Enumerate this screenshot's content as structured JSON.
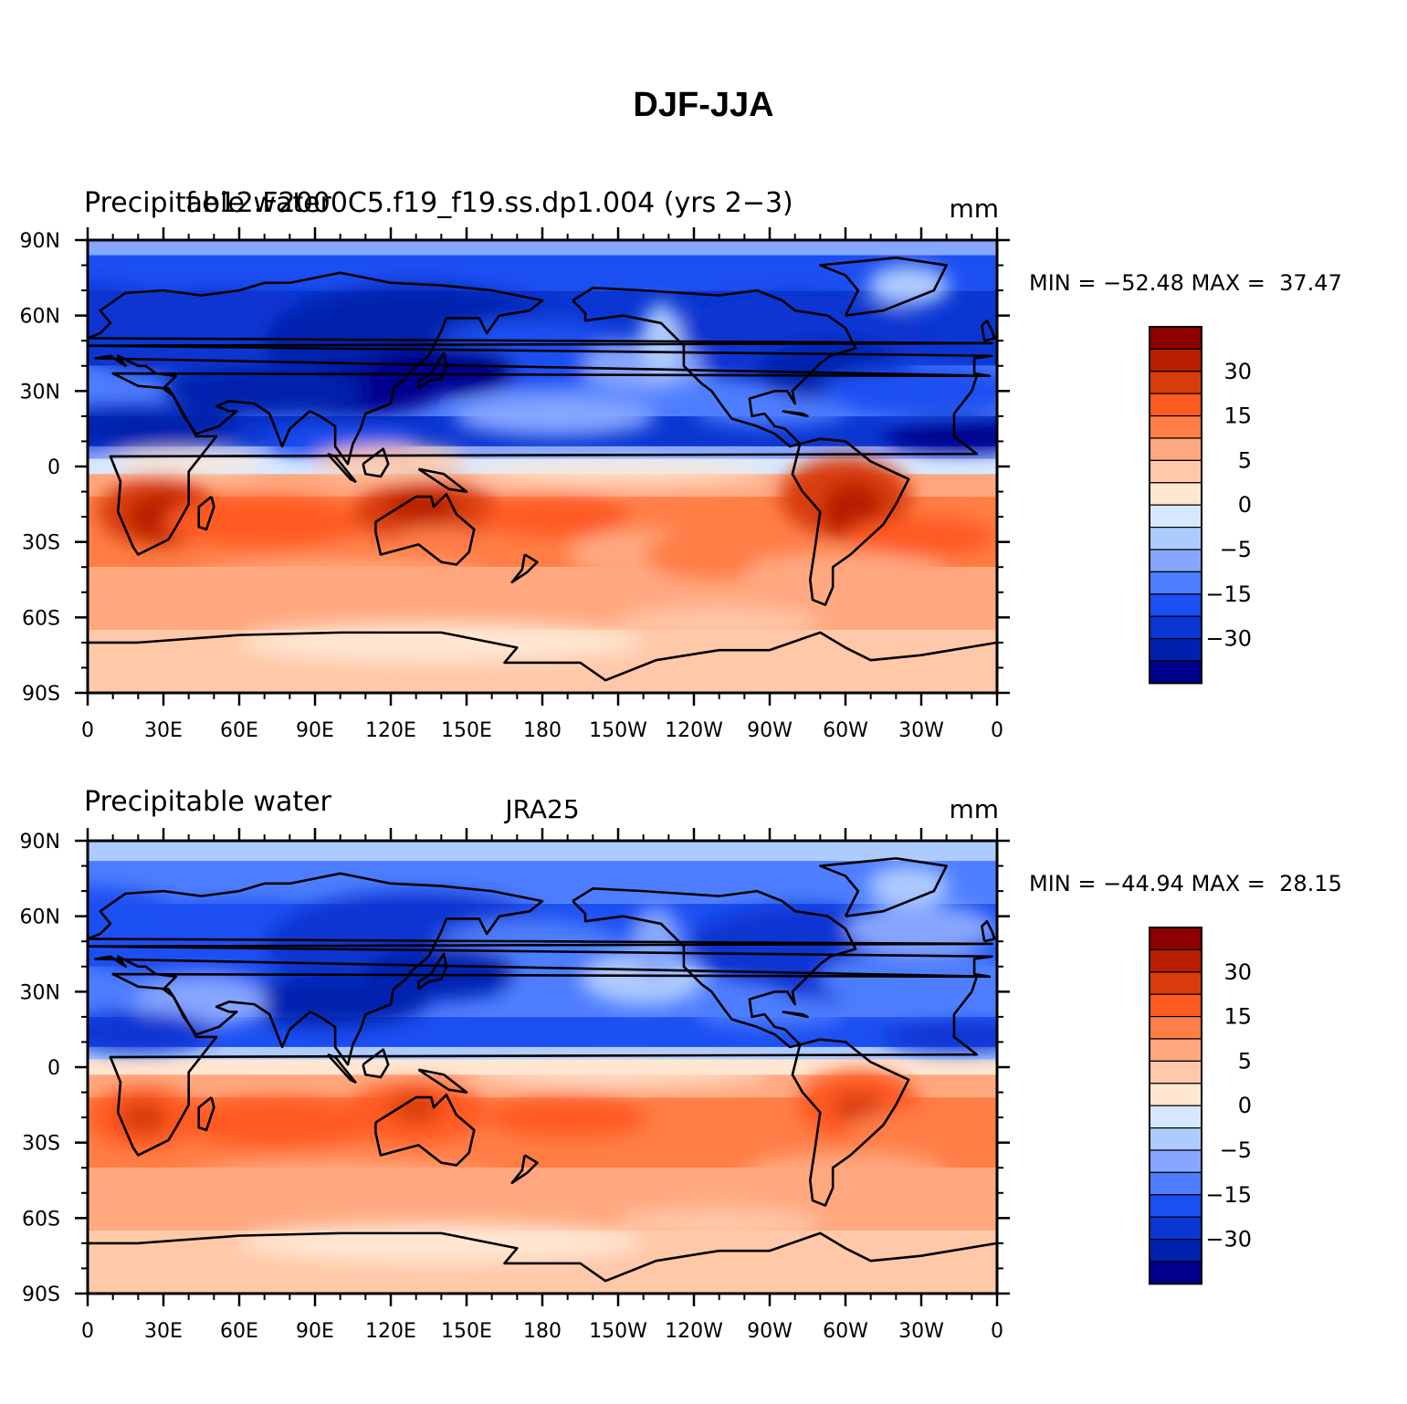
{
  "title": "DJF-JJA",
  "panels": [
    {
      "id": "model",
      "left_title": "Precipitable water",
      "center_title": "f.e12.F2000C5.f19_f19.ss.dp1.004 (yrs 2−3)",
      "units": "mm",
      "min_label": "MIN = −52.48",
      "max_label": "MAX =  37.47"
    },
    {
      "id": "obs",
      "left_title": "Precipitable water",
      "center_title": "JRA25",
      "units": "mm",
      "min_label": "MIN = −44.94",
      "max_label": "MAX =  28.15"
    }
  ],
  "map": {
    "lon_ticks": [
      "0",
      "30E",
      "60E",
      "90E",
      "120E",
      "150E",
      "180",
      "150W",
      "120W",
      "90W",
      "60W",
      "30W",
      "0"
    ],
    "lat_ticks": [
      "90N",
      "60N",
      "30N",
      "0",
      "30S",
      "60S",
      "90S"
    ],
    "projection": "cylindrical equidistant, 0° to 360° longitude"
  },
  "colorbar": {
    "labels": [
      "30",
      "15",
      "5",
      "0",
      "−5",
      "−15",
      "−30"
    ],
    "colors": [
      "#8c0000",
      "#b81f00",
      "#d83c0c",
      "#ff5a20",
      "#ff7e46",
      "#ffa880",
      "#ffc8a8",
      "#ffe6d2",
      "#d6e8ff",
      "#aecbff",
      "#86a6ff",
      "#4e7eff",
      "#1c4ff2",
      "#0a36d2",
      "#0020ae",
      "#00008a"
    ]
  },
  "chart_data": [
    {
      "type": "heatmap",
      "title": "Precipitable water — f.e12.F2000C5.f19_f19.ss.dp1.004 (yrs 2−3)",
      "variable": "Precipitable water",
      "units": "mm",
      "season_difference": "DJF-JJA",
      "min": -52.48,
      "max": 37.47,
      "contour_levels": [
        -40,
        -30,
        -25,
        -20,
        -15,
        -10,
        -5,
        -2,
        0,
        2,
        5,
        10,
        15,
        20,
        30,
        40
      ],
      "labelled_levels": [
        30,
        15,
        5,
        0,
        -5,
        -15,
        -30
      ],
      "lon_range": [
        0,
        360
      ],
      "lat_range": [
        -90,
        90
      ],
      "features": [
        {
          "region": "North Indian Ocean / South Asia",
          "sign": "negative",
          "approx_mm": -40
        },
        {
          "region": "NW Pacific / East Asia",
          "sign": "negative",
          "approx_mm": -30
        },
        {
          "region": "Western North Atlantic / US East",
          "sign": "negative",
          "approx_mm": -25
        },
        {
          "region": "Tropical North Atlantic",
          "sign": "negative",
          "approx_mm": -35
        },
        {
          "region": "Southern Africa",
          "sign": "positive",
          "approx_mm": 25
        },
        {
          "region": "Northern Australia",
          "sign": "positive",
          "approx_mm": 30
        },
        {
          "region": "South America (Brazil)",
          "sign": "positive",
          "approx_mm": 30
        },
        {
          "region": "Antarctica",
          "sign": "positive",
          "approx_mm": 1
        }
      ]
    },
    {
      "type": "heatmap",
      "title": "Precipitable water — JRA25",
      "variable": "Precipitable water",
      "units": "mm",
      "season_difference": "DJF-JJA",
      "min": -44.94,
      "max": 28.15,
      "contour_levels": [
        -40,
        -30,
        -25,
        -20,
        -15,
        -10,
        -5,
        -2,
        0,
        2,
        5,
        10,
        15,
        20,
        30,
        40
      ],
      "labelled_levels": [
        30,
        15,
        5,
        0,
        -5,
        -15,
        -30
      ],
      "lon_range": [
        0,
        360
      ],
      "lat_range": [
        -90,
        90
      ],
      "features": [
        {
          "region": "North Indian Ocean / South Asia",
          "sign": "negative",
          "approx_mm": -30
        },
        {
          "region": "NW Pacific / East Asia",
          "sign": "negative",
          "approx_mm": -25
        },
        {
          "region": "Western North Atlantic / US East",
          "sign": "negative",
          "approx_mm": -20
        },
        {
          "region": "Tropical North Atlantic",
          "sign": "negative",
          "approx_mm": -30
        },
        {
          "region": "Southern Africa",
          "sign": "positive",
          "approx_mm": 20
        },
        {
          "region": "Northern Australia",
          "sign": "positive",
          "approx_mm": 25
        },
        {
          "region": "South America (Brazil)",
          "sign": "positive",
          "approx_mm": 20
        },
        {
          "region": "Antarctica",
          "sign": "positive",
          "approx_mm": 1
        }
      ]
    }
  ]
}
